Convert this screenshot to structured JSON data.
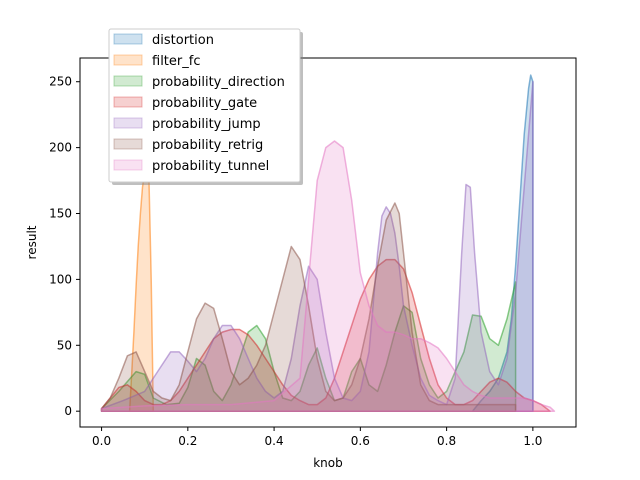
{
  "chart_data": {
    "type": "area",
    "title": "",
    "xlabel": "knob",
    "ylabel": "result",
    "xlim": [
      -0.05,
      1.1
    ],
    "ylim": [
      -12,
      268
    ],
    "xticks": [
      0.0,
      0.2,
      0.4,
      0.6,
      0.8,
      1.0
    ],
    "xtick_labels": [
      "0.0",
      "0.2",
      "0.4",
      "0.6",
      "0.8",
      "1.0"
    ],
    "yticks": [
      0,
      50,
      100,
      150,
      200,
      250
    ],
    "ytick_labels": [
      "0",
      "50",
      "100",
      "150",
      "200",
      "250"
    ],
    "grid": false,
    "legend_position": "top-left",
    "series": [
      {
        "name": "distortion",
        "color": "#1f77b4",
        "x": [
          0.86,
          0.88,
          0.9,
          0.92,
          0.94,
          0.95,
          0.96,
          0.97,
          0.98,
          0.99,
          0.995,
          1.0
        ],
        "y": [
          0,
          8,
          15,
          25,
          45,
          70,
          110,
          160,
          210,
          245,
          255,
          250
        ]
      },
      {
        "name": "filter_fc",
        "color": "#ff7f0e",
        "x": [
          0.065,
          0.07,
          0.075,
          0.08,
          0.085,
          0.09,
          0.095,
          0.1,
          0.105,
          0.11,
          0.115,
          0.12
        ],
        "y": [
          0,
          30,
          60,
          95,
          125,
          150,
          170,
          182,
          185,
          175,
          100,
          0
        ]
      },
      {
        "name": "probability_direction",
        "color": "#2ca02c",
        "x": [
          0.0,
          0.04,
          0.08,
          0.1,
          0.12,
          0.15,
          0.18,
          0.2,
          0.22,
          0.24,
          0.26,
          0.28,
          0.3,
          0.32,
          0.34,
          0.36,
          0.38,
          0.4,
          0.42,
          0.44,
          0.46,
          0.48,
          0.5,
          0.52,
          0.54,
          0.56,
          0.58,
          0.6,
          0.62,
          0.64,
          0.66,
          0.68,
          0.7,
          0.72,
          0.74,
          0.76,
          0.78,
          0.8,
          0.82,
          0.84,
          0.86,
          0.88,
          0.9,
          0.92,
          0.94,
          0.96
        ],
        "y": [
          2,
          15,
          30,
          28,
          10,
          5,
          6,
          18,
          40,
          35,
          15,
          8,
          20,
          40,
          60,
          65,
          55,
          30,
          10,
          8,
          15,
          35,
          48,
          25,
          8,
          10,
          30,
          40,
          20,
          15,
          35,
          60,
          80,
          75,
          40,
          20,
          10,
          15,
          30,
          45,
          73,
          72,
          55,
          50,
          70,
          98
        ]
      },
      {
        "name": "probability_gate",
        "color": "#d62728",
        "x": [
          0.0,
          0.02,
          0.04,
          0.06,
          0.08,
          0.1,
          0.12,
          0.14,
          0.16,
          0.18,
          0.2,
          0.22,
          0.24,
          0.26,
          0.28,
          0.3,
          0.32,
          0.34,
          0.36,
          0.38,
          0.4,
          0.42,
          0.44,
          0.46,
          0.48,
          0.5,
          0.52,
          0.54,
          0.56,
          0.58,
          0.6,
          0.62,
          0.64,
          0.66,
          0.68,
          0.7,
          0.72,
          0.74,
          0.76,
          0.78,
          0.8,
          0.82,
          0.84,
          0.86,
          0.88,
          0.9,
          0.92,
          0.94,
          0.96,
          0.98,
          1.0,
          1.02,
          1.04
        ],
        "y": [
          2,
          10,
          18,
          20,
          15,
          8,
          5,
          5,
          8,
          15,
          25,
          35,
          45,
          55,
          60,
          62,
          62,
          58,
          50,
          40,
          30,
          20,
          12,
          8,
          5,
          5,
          10,
          25,
          45,
          65,
          85,
          100,
          110,
          115,
          115,
          108,
          90,
          65,
          40,
          20,
          10,
          5,
          5,
          8,
          15,
          22,
          25,
          22,
          15,
          10,
          8,
          5,
          0
        ]
      },
      {
        "name": "probability_jump",
        "color": "#9467bd",
        "x": [
          0.0,
          0.05,
          0.1,
          0.13,
          0.16,
          0.18,
          0.2,
          0.22,
          0.24,
          0.26,
          0.28,
          0.3,
          0.32,
          0.34,
          0.36,
          0.38,
          0.4,
          0.42,
          0.44,
          0.46,
          0.48,
          0.5,
          0.52,
          0.54,
          0.56,
          0.58,
          0.6,
          0.62,
          0.64,
          0.65,
          0.66,
          0.67,
          0.68,
          0.69,
          0.7,
          0.72,
          0.74,
          0.76,
          0.78,
          0.8,
          0.82,
          0.835,
          0.845,
          0.855,
          0.865,
          0.88,
          0.9,
          0.92,
          0.94,
          0.96,
          0.98,
          1.0
        ],
        "y": [
          2,
          8,
          15,
          30,
          45,
          45,
          38,
          30,
          40,
          55,
          65,
          65,
          55,
          40,
          25,
          15,
          10,
          15,
          40,
          80,
          110,
          100,
          60,
          25,
          10,
          8,
          15,
          45,
          120,
          148,
          155,
          150,
          135,
          110,
          80,
          50,
          25,
          12,
          8,
          5,
          25,
          120,
          172,
          170,
          120,
          60,
          30,
          20,
          40,
          90,
          170,
          250
        ]
      },
      {
        "name": "probability_retrig",
        "color": "#8c564b",
        "x": [
          0.0,
          0.02,
          0.04,
          0.06,
          0.08,
          0.1,
          0.12,
          0.14,
          0.16,
          0.18,
          0.2,
          0.22,
          0.24,
          0.26,
          0.28,
          0.3,
          0.32,
          0.34,
          0.36,
          0.38,
          0.4,
          0.42,
          0.44,
          0.46,
          0.48,
          0.5,
          0.52,
          0.54,
          0.56,
          0.58,
          0.6,
          0.62,
          0.64,
          0.66,
          0.68,
          0.69,
          0.7,
          0.72,
          0.74,
          0.76,
          0.78,
          0.8,
          0.84,
          0.88,
          0.92,
          0.96
        ],
        "y": [
          2,
          10,
          25,
          42,
          45,
          30,
          15,
          10,
          8,
          20,
          45,
          70,
          82,
          78,
          55,
          30,
          20,
          25,
          35,
          50,
          75,
          100,
          125,
          115,
          80,
          40,
          15,
          8,
          10,
          20,
          40,
          70,
          110,
          145,
          158,
          150,
          120,
          60,
          20,
          8,
          5,
          5,
          5,
          5,
          5,
          5
        ]
      },
      {
        "name": "probability_tunnel",
        "color": "#e377c2",
        "x": [
          0.0,
          0.05,
          0.1,
          0.2,
          0.3,
          0.4,
          0.46,
          0.48,
          0.5,
          0.52,
          0.54,
          0.56,
          0.58,
          0.6,
          0.62,
          0.64,
          0.66,
          0.68,
          0.7,
          0.72,
          0.74,
          0.76,
          0.78,
          0.8,
          0.82,
          0.84,
          0.86,
          0.88,
          0.9,
          0.92,
          0.94,
          0.96,
          0.98,
          1.0,
          1.02,
          1.04,
          1.05
        ],
        "y": [
          2,
          3,
          4,
          5,
          5,
          8,
          25,
          100,
          175,
          200,
          205,
          200,
          160,
          105,
          80,
          65,
          60,
          60,
          58,
          55,
          55,
          52,
          48,
          40,
          30,
          20,
          15,
          12,
          10,
          10,
          10,
          10,
          10,
          8,
          5,
          3,
          0
        ]
      }
    ]
  }
}
